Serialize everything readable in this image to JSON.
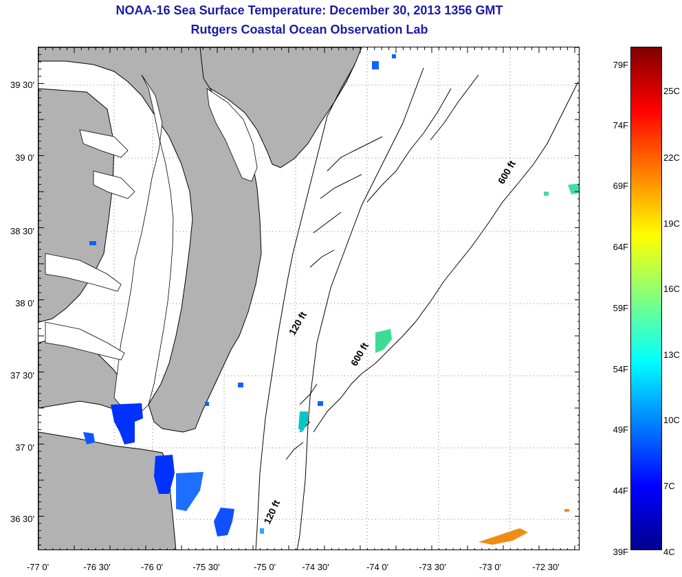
{
  "title": "NOAA-16 Sea Surface Temperature:  December 30, 2013 1356 GMT",
  "subtitle": "Rutgers Coastal Ocean Observation Lab",
  "map": {
    "lat_labels": [
      "39 30'",
      "39 0'",
      "38 30'",
      "38 0'",
      "37 30'",
      "37 0'",
      "36 30'"
    ],
    "lon_labels": [
      "-77 0'",
      "-76 30'",
      "-76 0'",
      "-75 30'",
      "-75 0'",
      "-74 30'",
      "-74 0'",
      "-73 30'",
      "-73 0'",
      "-72 30'"
    ],
    "contour_labels": [
      "600 ft",
      "120 ft",
      "600 ft",
      "120 ft"
    ],
    "land_color": "#b2b2b2"
  },
  "colorbar": {
    "fahrenheit": [
      "79F",
      "74F",
      "69F",
      "64F",
      "59F",
      "54F",
      "49F",
      "44F",
      "39F"
    ],
    "celsius": [
      "25C",
      "22C",
      "19C",
      "16C",
      "13C",
      "10C",
      "7C",
      "4C"
    ],
    "colors": [
      "#7f0000",
      "#ff0000",
      "#ff8000",
      "#ffff00",
      "#80ff80",
      "#00ffff",
      "#0080ff",
      "#0000ff",
      "#00008f"
    ]
  }
}
